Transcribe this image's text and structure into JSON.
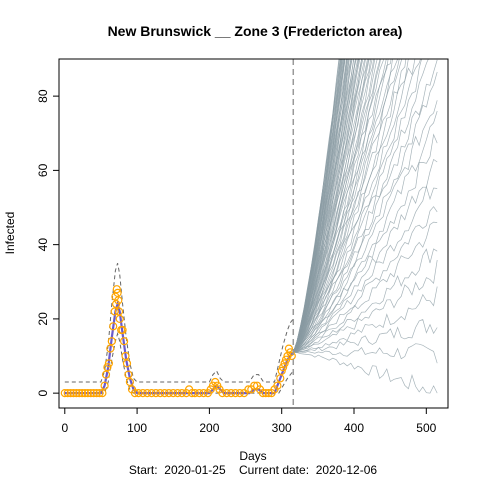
{
  "chart_data": {
    "type": "line",
    "title": "New Brunswick __ Zone 3 (Fredericton area)",
    "xlabel": "Days",
    "ylabel": "Infected",
    "xlim": [
      -8,
      530
    ],
    "ylim": [
      -4,
      90
    ],
    "x_ticks": [
      0,
      100,
      200,
      300,
      400,
      500
    ],
    "y_ticks": [
      0,
      20,
      40,
      60,
      80
    ],
    "footer": "Start:  2020-01-25    Current date:  2020-12-06",
    "current_day": 316,
    "projection_end_day": 515,
    "colors": {
      "observed": "#FFA500",
      "fit": "#6A5ACD",
      "band": "#666666",
      "projection": "#8A9BA3",
      "current_line": "#999999"
    },
    "observed": [
      {
        "x": 0,
        "y": 0
      },
      {
        "x": 4,
        "y": 0
      },
      {
        "x": 8,
        "y": 0
      },
      {
        "x": 12,
        "y": 0
      },
      {
        "x": 16,
        "y": 0
      },
      {
        "x": 20,
        "y": 0
      },
      {
        "x": 24,
        "y": 0
      },
      {
        "x": 28,
        "y": 0
      },
      {
        "x": 32,
        "y": 0
      },
      {
        "x": 36,
        "y": 0
      },
      {
        "x": 40,
        "y": 0
      },
      {
        "x": 44,
        "y": 0
      },
      {
        "x": 48,
        "y": 0
      },
      {
        "x": 52,
        "y": 0
      },
      {
        "x": 55,
        "y": 2
      },
      {
        "x": 57,
        "y": 5
      },
      {
        "x": 59,
        "y": 7
      },
      {
        "x": 61,
        "y": 8
      },
      {
        "x": 63,
        "y": 12
      },
      {
        "x": 65,
        "y": 14
      },
      {
        "x": 67,
        "y": 18
      },
      {
        "x": 69,
        "y": 22
      },
      {
        "x": 70,
        "y": 26
      },
      {
        "x": 71,
        "y": 24
      },
      {
        "x": 72,
        "y": 28
      },
      {
        "x": 73,
        "y": 27
      },
      {
        "x": 74,
        "y": 25
      },
      {
        "x": 75,
        "y": 22
      },
      {
        "x": 76,
        "y": 20
      },
      {
        "x": 78,
        "y": 17
      },
      {
        "x": 80,
        "y": 17
      },
      {
        "x": 82,
        "y": 14
      },
      {
        "x": 84,
        "y": 10
      },
      {
        "x": 86,
        "y": 8
      },
      {
        "x": 88,
        "y": 5
      },
      {
        "x": 90,
        "y": 3
      },
      {
        "x": 93,
        "y": 1
      },
      {
        "x": 97,
        "y": 0
      },
      {
        "x": 102,
        "y": 0
      },
      {
        "x": 108,
        "y": 0
      },
      {
        "x": 114,
        "y": 0
      },
      {
        "x": 120,
        "y": 0
      },
      {
        "x": 126,
        "y": 0
      },
      {
        "x": 132,
        "y": 0
      },
      {
        "x": 138,
        "y": 0
      },
      {
        "x": 144,
        "y": 0
      },
      {
        "x": 150,
        "y": 0
      },
      {
        "x": 156,
        "y": 0
      },
      {
        "x": 162,
        "y": 0
      },
      {
        "x": 168,
        "y": 0
      },
      {
        "x": 172,
        "y": 1
      },
      {
        "x": 176,
        "y": 0
      },
      {
        "x": 180,
        "y": 0
      },
      {
        "x": 186,
        "y": 0
      },
      {
        "x": 192,
        "y": 0
      },
      {
        "x": 198,
        "y": 0
      },
      {
        "x": 202,
        "y": 1
      },
      {
        "x": 205,
        "y": 2
      },
      {
        "x": 208,
        "y": 3
      },
      {
        "x": 211,
        "y": 2
      },
      {
        "x": 214,
        "y": 1
      },
      {
        "x": 218,
        "y": 0
      },
      {
        "x": 224,
        "y": 0
      },
      {
        "x": 230,
        "y": 0
      },
      {
        "x": 236,
        "y": 0
      },
      {
        "x": 242,
        "y": 0
      },
      {
        "x": 248,
        "y": 0
      },
      {
        "x": 254,
        "y": 1
      },
      {
        "x": 258,
        "y": 1
      },
      {
        "x": 262,
        "y": 2
      },
      {
        "x": 266,
        "y": 2
      },
      {
        "x": 270,
        "y": 1
      },
      {
        "x": 274,
        "y": 0
      },
      {
        "x": 278,
        "y": 0
      },
      {
        "x": 282,
        "y": 0
      },
      {
        "x": 286,
        "y": 0
      },
      {
        "x": 290,
        "y": 1
      },
      {
        "x": 294,
        "y": 2
      },
      {
        "x": 298,
        "y": 4
      },
      {
        "x": 300,
        "y": 6
      },
      {
        "x": 302,
        "y": 7
      },
      {
        "x": 304,
        "y": 8
      },
      {
        "x": 306,
        "y": 9
      },
      {
        "x": 308,
        "y": 10
      },
      {
        "x": 310,
        "y": 12
      },
      {
        "x": 312,
        "y": 11
      },
      {
        "x": 314,
        "y": 10
      }
    ],
    "fit": [
      {
        "x": 0,
        "y": 0
      },
      {
        "x": 50,
        "y": 0
      },
      {
        "x": 55,
        "y": 2
      },
      {
        "x": 60,
        "y": 7
      },
      {
        "x": 65,
        "y": 15
      },
      {
        "x": 70,
        "y": 22
      },
      {
        "x": 73,
        "y": 24
      },
      {
        "x": 76,
        "y": 22
      },
      {
        "x": 80,
        "y": 16
      },
      {
        "x": 85,
        "y": 9
      },
      {
        "x": 90,
        "y": 4
      },
      {
        "x": 95,
        "y": 1
      },
      {
        "x": 100,
        "y": 0
      },
      {
        "x": 200,
        "y": 0
      },
      {
        "x": 205,
        "y": 1
      },
      {
        "x": 210,
        "y": 2
      },
      {
        "x": 215,
        "y": 1
      },
      {
        "x": 220,
        "y": 0
      },
      {
        "x": 255,
        "y": 0
      },
      {
        "x": 262,
        "y": 1
      },
      {
        "x": 268,
        "y": 1
      },
      {
        "x": 275,
        "y": 0
      },
      {
        "x": 290,
        "y": 0
      },
      {
        "x": 296,
        "y": 3
      },
      {
        "x": 302,
        "y": 6
      },
      {
        "x": 308,
        "y": 9
      },
      {
        "x": 312,
        "y": 10
      },
      {
        "x": 316,
        "y": 11
      }
    ],
    "band_upper": [
      {
        "x": 0,
        "y": 3
      },
      {
        "x": 50,
        "y": 3
      },
      {
        "x": 55,
        "y": 6
      },
      {
        "x": 60,
        "y": 13
      },
      {
        "x": 65,
        "y": 24
      },
      {
        "x": 70,
        "y": 33
      },
      {
        "x": 73,
        "y": 35
      },
      {
        "x": 76,
        "y": 32
      },
      {
        "x": 80,
        "y": 24
      },
      {
        "x": 85,
        "y": 15
      },
      {
        "x": 90,
        "y": 8
      },
      {
        "x": 95,
        "y": 4
      },
      {
        "x": 100,
        "y": 3
      },
      {
        "x": 200,
        "y": 3
      },
      {
        "x": 205,
        "y": 5
      },
      {
        "x": 210,
        "y": 6
      },
      {
        "x": 215,
        "y": 4
      },
      {
        "x": 220,
        "y": 3
      },
      {
        "x": 255,
        "y": 3
      },
      {
        "x": 262,
        "y": 5
      },
      {
        "x": 268,
        "y": 5
      },
      {
        "x": 275,
        "y": 3
      },
      {
        "x": 290,
        "y": 3
      },
      {
        "x": 296,
        "y": 8
      },
      {
        "x": 302,
        "y": 13
      },
      {
        "x": 308,
        "y": 17
      },
      {
        "x": 312,
        "y": 19
      },
      {
        "x": 316,
        "y": 20
      }
    ],
    "band_lower": [
      {
        "x": 0,
        "y": 0
      },
      {
        "x": 55,
        "y": 0
      },
      {
        "x": 60,
        "y": 3
      },
      {
        "x": 65,
        "y": 9
      },
      {
        "x": 70,
        "y": 14
      },
      {
        "x": 73,
        "y": 16
      },
      {
        "x": 76,
        "y": 14
      },
      {
        "x": 80,
        "y": 9
      },
      {
        "x": 85,
        "y": 4
      },
      {
        "x": 90,
        "y": 1
      },
      {
        "x": 95,
        "y": 0
      },
      {
        "x": 296,
        "y": 0
      },
      {
        "x": 302,
        "y": 2
      },
      {
        "x": 308,
        "y": 4
      },
      {
        "x": 312,
        "y": 5
      },
      {
        "x": 316,
        "y": 6
      }
    ],
    "projection": {
      "start_x": 316,
      "end_x": 515,
      "start_y": 11,
      "final_y_min": 0,
      "final_y_max": 90,
      "trajectories": 80
    }
  }
}
